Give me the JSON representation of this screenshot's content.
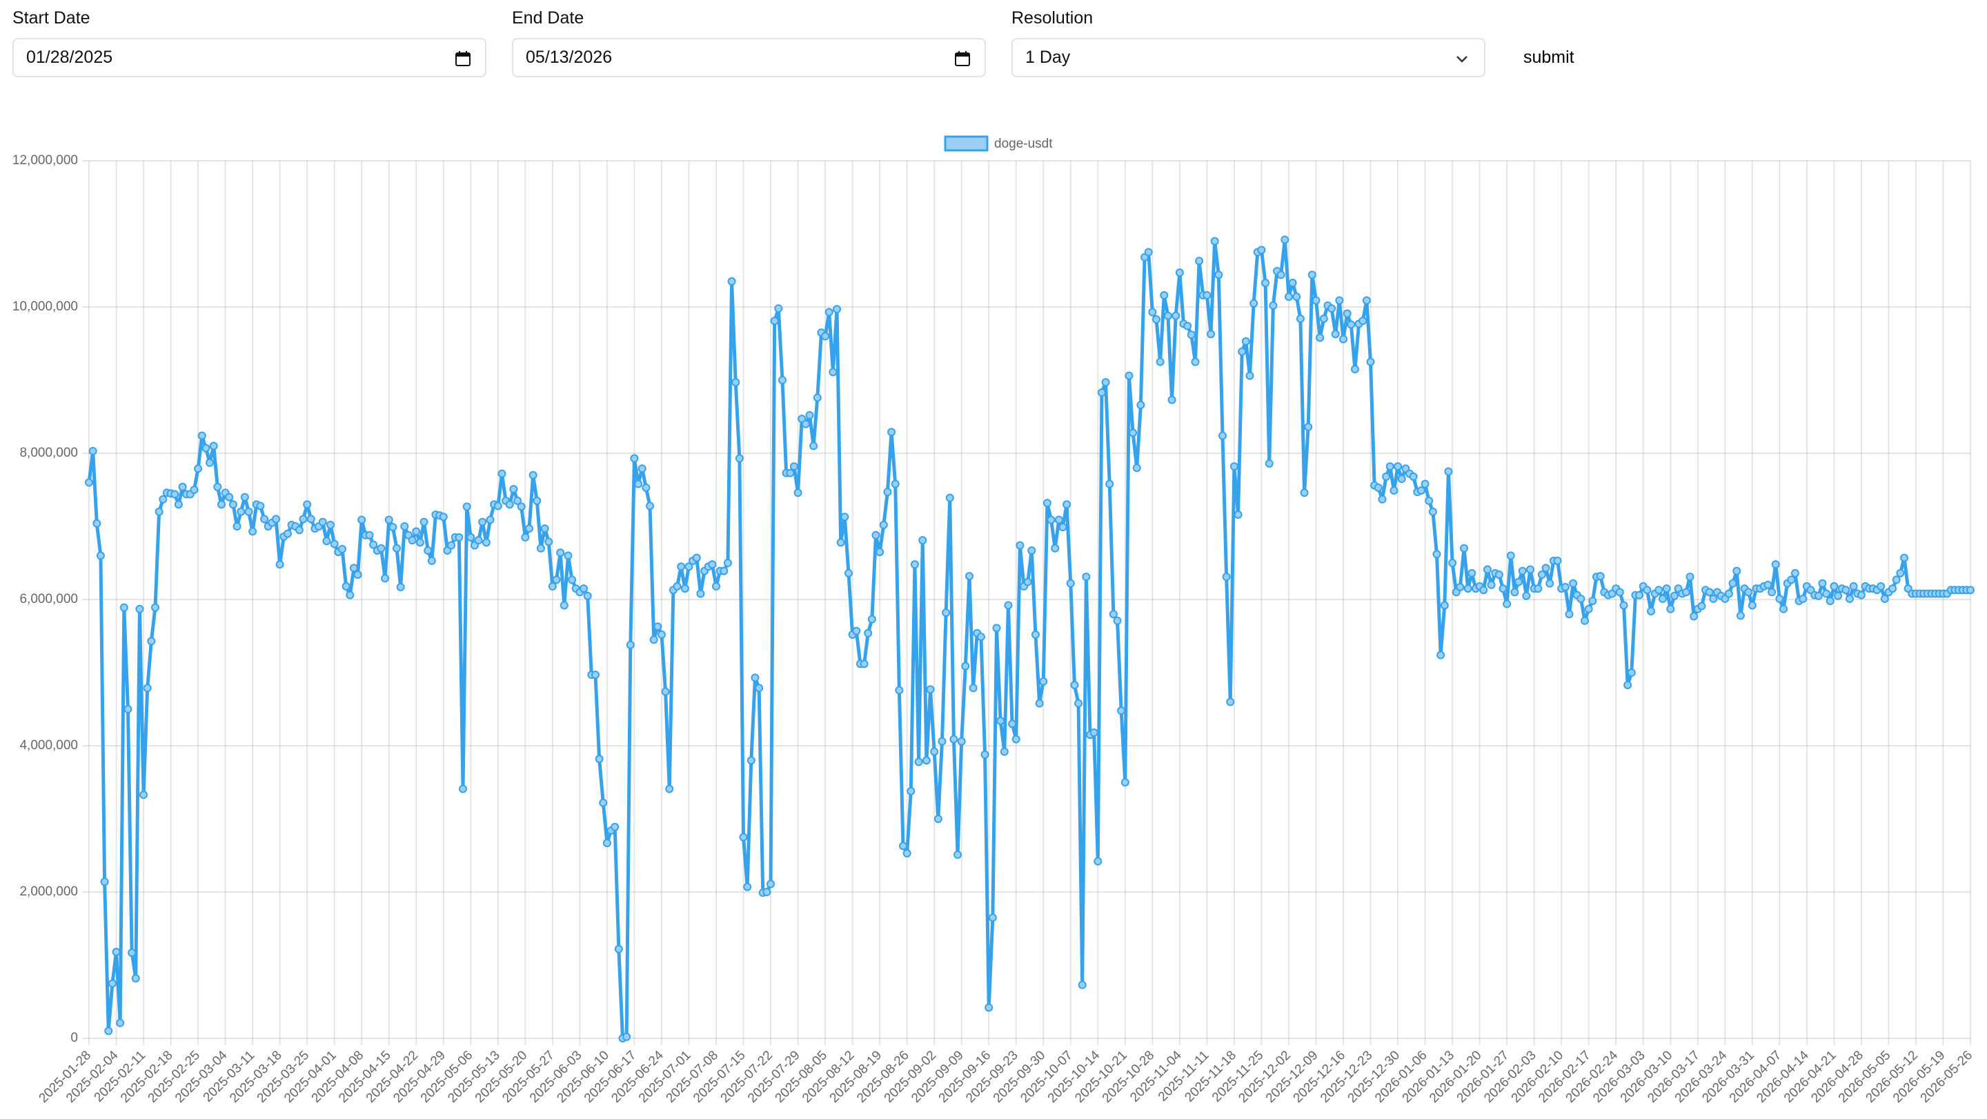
{
  "form": {
    "start_date": {
      "label": "Start Date",
      "value": "01/28/2025"
    },
    "end_date": {
      "label": "End Date",
      "value": "05/13/2026"
    },
    "resolution": {
      "label": "Resolution",
      "value": "1 Day"
    },
    "submit": "submit"
  },
  "chart_data": {
    "type": "line",
    "categories": [
      "2025-01-28",
      null,
      null,
      null,
      null,
      null,
      null,
      "2025-02-04",
      null,
      null,
      null,
      null,
      null,
      null,
      "2025-02-11",
      null,
      null,
      null,
      null,
      null,
      null,
      "2025-02-18",
      null,
      null,
      null,
      null,
      null,
      null,
      "2025-02-25",
      null,
      null,
      null,
      null,
      null,
      null,
      "2025-03-04",
      null,
      null,
      null,
      null,
      null,
      null,
      "2025-03-11",
      null,
      null,
      null,
      null,
      null,
      null,
      "2025-03-18",
      null,
      null,
      null,
      null,
      null,
      null,
      "2025-03-25",
      null,
      null,
      null,
      null,
      null,
      null,
      "2025-04-01",
      null,
      null,
      null,
      null,
      null,
      null,
      "2025-04-08",
      null,
      null,
      null,
      null,
      null,
      null,
      "2025-04-15",
      null,
      null,
      null,
      null,
      null,
      null,
      "2025-04-22",
      null,
      null,
      null,
      null,
      null,
      null,
      "2025-04-29",
      null,
      null,
      null,
      null,
      null,
      null,
      "2025-05-06",
      null,
      null,
      null,
      null,
      null,
      null,
      "2025-05-13",
      null,
      null,
      null,
      null,
      null,
      null,
      "2025-05-20",
      null,
      null,
      null,
      null,
      null,
      null,
      "2025-05-27",
      null,
      null,
      null,
      null,
      null,
      null,
      "2025-06-03",
      null,
      null,
      null,
      null,
      null,
      null,
      "2025-06-10",
      null,
      null,
      null,
      null,
      null,
      null,
      "2025-06-17",
      null,
      null,
      null,
      null,
      null,
      null,
      "2025-06-24",
      null,
      null,
      null,
      null,
      null,
      null,
      "2025-07-01",
      null,
      null,
      null,
      null,
      null,
      null,
      "2025-07-08",
      null,
      null,
      null,
      null,
      null,
      null,
      "2025-07-15",
      null,
      null,
      null,
      null,
      null,
      null,
      "2025-07-22",
      null,
      null,
      null,
      null,
      null,
      null,
      "2025-07-29",
      null,
      null,
      null,
      null,
      null,
      null,
      "2025-08-05",
      null,
      null,
      null,
      null,
      null,
      null,
      "2025-08-12",
      null,
      null,
      null,
      null,
      null,
      null,
      "2025-08-19",
      null,
      null,
      null,
      null,
      null,
      null,
      "2025-08-26",
      null,
      null,
      null,
      null,
      null,
      null,
      "2025-09-02",
      null,
      null,
      null,
      null,
      null,
      null,
      "2025-09-09",
      null,
      null,
      null,
      null,
      null,
      null,
      "2025-09-16",
      null,
      null,
      null,
      null,
      null,
      null,
      "2025-09-23",
      null,
      null,
      null,
      null,
      null,
      null,
      "2025-09-30",
      null,
      null,
      null,
      null,
      null,
      null,
      "2025-10-07",
      null,
      null,
      null,
      null,
      null,
      null,
      "2025-10-14",
      null,
      null,
      null,
      null,
      null,
      null,
      "2025-10-21",
      null,
      null,
      null,
      null,
      null,
      null,
      "2025-10-28",
      null,
      null,
      null,
      null,
      null,
      null,
      "2025-11-04",
      null,
      null,
      null,
      null,
      null,
      null,
      "2025-11-11",
      null,
      null,
      null,
      null,
      null,
      null,
      "2025-11-18",
      null,
      null,
      null,
      null,
      null,
      null,
      "2025-11-25",
      null,
      null,
      null,
      null,
      null,
      null,
      "2025-12-02",
      null,
      null,
      null,
      null,
      null,
      null,
      "2025-12-09",
      null,
      null,
      null,
      null,
      null,
      null,
      "2025-12-16",
      null,
      null,
      null,
      null,
      null,
      null,
      "2025-12-23",
      null,
      null,
      null,
      null,
      null,
      null,
      "2025-12-30",
      null,
      null,
      null,
      null,
      null,
      null,
      "2026-01-06",
      null,
      null,
      null,
      null,
      null,
      null,
      "2026-01-13",
      null,
      null,
      null,
      null,
      null,
      null,
      "2026-01-20",
      null,
      null,
      null,
      null,
      null,
      null,
      "2026-01-27",
      null,
      null,
      null,
      null,
      null,
      null,
      "2026-02-03",
      null,
      null,
      null,
      null,
      null,
      null,
      "2026-02-10",
      null,
      null,
      null,
      null,
      null,
      null,
      "2026-02-17",
      null,
      null,
      null,
      null,
      null,
      null,
      "2026-02-24",
      null,
      null,
      null,
      null,
      null,
      null,
      "2026-03-03",
      null,
      null,
      null,
      null,
      null,
      null,
      "2026-03-10",
      null,
      null,
      null,
      null,
      null,
      null,
      "2026-03-17",
      null,
      null,
      null,
      null,
      null,
      null,
      "2026-03-24",
      null,
      null,
      null,
      null,
      null,
      null,
      "2026-03-31",
      null,
      null,
      null,
      null,
      null,
      null,
      "2026-04-07",
      null,
      null,
      null,
      null,
      null,
      null,
      "2026-04-14",
      null,
      null,
      null,
      null,
      null,
      null,
      "2026-04-21",
      null,
      null,
      null,
      null,
      null,
      null,
      "2026-04-28",
      null,
      null,
      null,
      null,
      null,
      null,
      "2026-05-05",
      null,
      null,
      null,
      null,
      null,
      null,
      "2026-05-12",
      null,
      null,
      null,
      null,
      null,
      null,
      "2026-05-19",
      null,
      null,
      null,
      null,
      null,
      null,
      "2026-05-26"
    ],
    "series": [
      {
        "name": "doge-usdt",
        "color": "#36a2eb",
        "values": [
          7600000,
          8030000,
          7040000,
          6600000,
          2140000,
          100000,
          750000,
          1180000,
          210000,
          5890000,
          4500000,
          1170000,
          820000,
          5870000,
          3330000,
          4790000,
          5430000,
          5890000,
          7200000,
          7370000,
          7460000,
          7450000,
          7440000,
          7300000,
          7540000,
          7440000,
          7440000,
          7500000,
          7790000,
          8240000,
          8070000,
          7870000,
          8100000,
          7540000,
          7300000,
          7460000,
          7400000,
          7300000,
          7000000,
          7200000,
          7400000,
          7200000,
          6930000,
          7300000,
          7280000,
          7100000,
          7000000,
          7050000,
          7100000,
          6480000,
          6860000,
          6900000,
          7020000,
          7000000,
          6950000,
          7100000,
          7300000,
          7100000,
          6970000,
          7000000,
          7060000,
          6800000,
          7020000,
          6760000,
          6650000,
          6690000,
          6180000,
          6060000,
          6430000,
          6340000,
          7090000,
          6880000,
          6880000,
          6750000,
          6670000,
          6700000,
          6290000,
          7090000,
          6990000,
          6700000,
          6170000,
          7000000,
          6880000,
          6810000,
          6930000,
          6780000,
          7060000,
          6670000,
          6530000,
          7160000,
          7150000,
          7130000,
          6670000,
          6740000,
          6850000,
          6850000,
          3410000,
          7270000,
          6850000,
          6740000,
          6810000,
          7060000,
          6780000,
          7090000,
          7300000,
          7280000,
          7720000,
          7350000,
          7300000,
          7510000,
          7350000,
          7270000,
          6850000,
          6970000,
          7700000,
          7350000,
          6700000,
          6970000,
          6790000,
          6180000,
          6270000,
          6640000,
          5920000,
          6600000,
          6270000,
          6150000,
          6100000,
          6150000,
          6050000,
          4970000,
          4970000,
          3820000,
          3220000,
          2670000,
          2840000,
          2890000,
          1220000,
          0,
          20000,
          5380000,
          7930000,
          7580000,
          7790000,
          7530000,
          7280000,
          5450000,
          5630000,
          5520000,
          4740000,
          3410000,
          6130000,
          6180000,
          6450000,
          6150000,
          6450000,
          6530000,
          6570000,
          6080000,
          6390000,
          6450000,
          6480000,
          6180000,
          6390000,
          6390000,
          6500000,
          10350000,
          8970000,
          7930000,
          2750000,
          2070000,
          3800000,
          4930000,
          4790000,
          1990000,
          2000000,
          2110000,
          9810000,
          9980000,
          9000000,
          7730000,
          7730000,
          7820000,
          7460000,
          8470000,
          8400000,
          8520000,
          8100000,
          8760000,
          9650000,
          9600000,
          9930000,
          9110000,
          9970000,
          6780000,
          7130000,
          6360000,
          5520000,
          5570000,
          5120000,
          5120000,
          5540000,
          5730000,
          6880000,
          6650000,
          7020000,
          7470000,
          8290000,
          7580000,
          4760000,
          2630000,
          2530000,
          3380000,
          6480000,
          3780000,
          6810000,
          3800000,
          4770000,
          3920000,
          3000000,
          4060000,
          5820000,
          7390000,
          4090000,
          2510000,
          4060000,
          5090000,
          6320000,
          4790000,
          5540000,
          5490000,
          3880000,
          420000,
          1650000,
          5610000,
          4340000,
          3920000,
          5920000,
          4300000,
          4090000,
          6740000,
          6180000,
          6240000,
          6670000,
          5520000,
          4580000,
          4880000,
          7320000,
          7090000,
          6700000,
          7090000,
          6990000,
          7300000,
          6220000,
          4830000,
          4580000,
          730000,
          6310000,
          4150000,
          4180000,
          2420000,
          8830000,
          8970000,
          7580000,
          5800000,
          5710000,
          4480000,
          3500000,
          9060000,
          8280000,
          7800000,
          8660000,
          10680000,
          10750000,
          9930000,
          9830000,
          9250000,
          10160000,
          9880000,
          8730000,
          9880000,
          10470000,
          9770000,
          9740000,
          9620000,
          9250000,
          10630000,
          10160000,
          10160000,
          9630000,
          10900000,
          10440000,
          8240000,
          6310000,
          4600000,
          7820000,
          7160000,
          9390000,
          9530000,
          9060000,
          10050000,
          10750000,
          10780000,
          10330000,
          7860000,
          10020000,
          10490000,
          10440000,
          10920000,
          10140000,
          10330000,
          10140000,
          9840000,
          7460000,
          8360000,
          10440000,
          10090000,
          9580000,
          9840000,
          10020000,
          9980000,
          9630000,
          10090000,
          9560000,
          9910000,
          9760000,
          9150000,
          9770000,
          9810000,
          10090000,
          9250000,
          7560000,
          7530000,
          7370000,
          7680000,
          7820000,
          7490000,
          7820000,
          7650000,
          7790000,
          7720000,
          7680000,
          7470000,
          7490000,
          7580000,
          7350000,
          7200000,
          6620000,
          5240000,
          5920000,
          7750000,
          6500000,
          6100000,
          6170000,
          6700000,
          6150000,
          6360000,
          6150000,
          6180000,
          6130000,
          6410000,
          6200000,
          6360000,
          6340000,
          6150000,
          5940000,
          6600000,
          6100000,
          6240000,
          6390000,
          6050000,
          6410000,
          6150000,
          6150000,
          6340000,
          6430000,
          6220000,
          6530000,
          6530000,
          6150000,
          6170000,
          5800000,
          6220000,
          6060000,
          6010000,
          5710000,
          5870000,
          5980000,
          6310000,
          6320000,
          6100000,
          6060000,
          6080000,
          6150000,
          6100000,
          5920000,
          4830000,
          5000000,
          6060000,
          6060000,
          6180000,
          6130000,
          5840000,
          6080000,
          6130000,
          6010000,
          6150000,
          5870000,
          6050000,
          6150000,
          6080000,
          6100000,
          6310000,
          5770000,
          5870000,
          5910000,
          6130000,
          6100000,
          6010000,
          6100000,
          6050000,
          6010000,
          6080000,
          6220000,
          6390000,
          5780000,
          6150000,
          6100000,
          5920000,
          6150000,
          6150000,
          6180000,
          6200000,
          6100000,
          6480000,
          6010000,
          5870000,
          6220000,
          6270000,
          6360000,
          5980000,
          6010000,
          6180000,
          6130000,
          6060000,
          6050000,
          6220000,
          6080000,
          5980000,
          6180000,
          6050000,
          6150000,
          6130000,
          6010000,
          6180000,
          6080000,
          6060000,
          6180000,
          6150000,
          6150000,
          6130000,
          6180000,
          6010000,
          6100000,
          6150000,
          6270000,
          6360000,
          6570000,
          6150000,
          6080000,
          6080000,
          6080000,
          6080000,
          6080000,
          6080000,
          6080000,
          6080000,
          6080000,
          6080000,
          6130000,
          6130000,
          6130000,
          6130000,
          6130000,
          6130000
        ]
      }
    ],
    "ylim": [
      0,
      12000000
    ],
    "yticks": [
      0,
      {
        "value": 2000000,
        "label": "2,000,000"
      },
      {
        "value": 4000000,
        "label": "4,000,000"
      },
      {
        "value": 6000000,
        "label": "6,000,000"
      },
      {
        "value": 8000000,
        "label": "8,000,000"
      },
      {
        "value": 10000000,
        "label": "10,000,000"
      },
      {
        "value": 12000000,
        "label": "12,000,000"
      }
    ],
    "grid": true,
    "legend": "top"
  }
}
